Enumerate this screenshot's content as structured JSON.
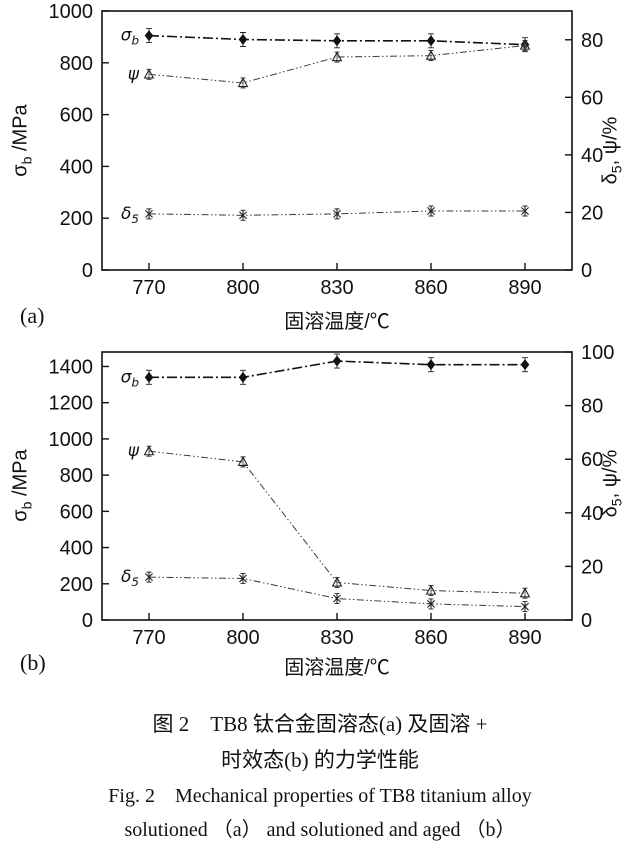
{
  "figure": {
    "caption_cn_line1": "图 2　TB8 钛合金固溶态(a) 及固溶 +",
    "caption_cn_line2": "时效态(b) 的力学性能",
    "caption_en_line1": "Fig. 2　Mechanical properties of TB8 titanium alloy",
    "caption_en_line2": "solutioned （a） and solutioned and aged （b）"
  },
  "axes": {
    "left": {
      "sym": "σ",
      "sub": "b",
      "rest": " /MPa"
    },
    "right": {
      "sym": "δ",
      "sub": "5",
      "rest": ", ψ/%"
    }
  },
  "chart_data": [
    {
      "type": "line",
      "panel": "a",
      "panel_label": "(a)",
      "xlabel": "固溶温度/℃",
      "ylabel_left": "σb /MPa",
      "ylabel_right": "δ5, ψ/%",
      "x": [
        770,
        800,
        830,
        860,
        890
      ],
      "xticks": [
        770,
        800,
        830,
        860,
        890
      ],
      "xlim": [
        755,
        905
      ],
      "ylim_left": [
        0,
        1000
      ],
      "yticks_left": [
        0,
        200,
        400,
        600,
        800,
        1000
      ],
      "ylim_right": [
        0,
        90
      ],
      "yticks_right": [
        0,
        20,
        40,
        60,
        80
      ],
      "grid": false,
      "legend": "in-plot series labels",
      "series": [
        {
          "id": "sigma-b",
          "name_main": "σ",
          "name_sub": "b",
          "axis": "left",
          "marker": "diamond-filled",
          "values": [
            905,
            890,
            885,
            885,
            870
          ]
        },
        {
          "id": "psi",
          "name_main": "ψ",
          "name_sub": "",
          "axis": "right",
          "marker": "triangle-open",
          "values": [
            68,
            65,
            74,
            74.5,
            78
          ]
        },
        {
          "id": "delta-5",
          "name_main": "δ",
          "name_sub": "5",
          "axis": "right",
          "marker": "asterisk",
          "values": [
            19.5,
            19,
            19.5,
            20.5,
            20.5
          ]
        }
      ]
    },
    {
      "type": "line",
      "panel": "b",
      "panel_label": "(b)",
      "xlabel": "固溶温度/℃",
      "ylabel_left": "σb /MPa",
      "ylabel_right": "δ5, ψ/%",
      "x": [
        770,
        800,
        830,
        860,
        890
      ],
      "xticks": [
        770,
        800,
        830,
        860,
        890
      ],
      "xlim": [
        755,
        905
      ],
      "ylim_left": [
        0,
        1480
      ],
      "yticks_left": [
        0,
        200,
        400,
        600,
        800,
        1000,
        1200,
        1400
      ],
      "ylim_right": [
        0,
        100
      ],
      "yticks_right": [
        0,
        20,
        40,
        60,
        80,
        100
      ],
      "grid": false,
      "legend": "in-plot series labels",
      "series": [
        {
          "id": "sigma-b",
          "name_main": "σ",
          "name_sub": "b",
          "axis": "left",
          "marker": "diamond-filled",
          "values": [
            1340,
            1340,
            1430,
            1410,
            1410
          ]
        },
        {
          "id": "psi",
          "name_main": "ψ",
          "name_sub": "",
          "axis": "right",
          "marker": "triangle-open",
          "values": [
            63,
            59,
            14,
            11,
            10
          ]
        },
        {
          "id": "delta-5",
          "name_main": "δ",
          "name_sub": "5",
          "axis": "right",
          "marker": "asterisk",
          "values": [
            16,
            15.5,
            8,
            6,
            5
          ]
        }
      ]
    }
  ]
}
